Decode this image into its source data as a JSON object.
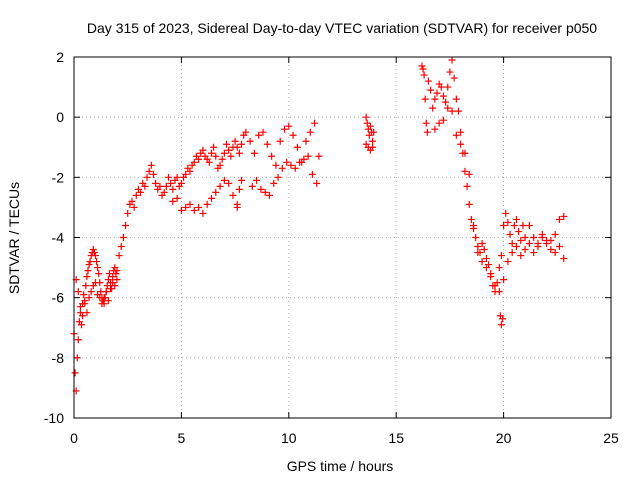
{
  "chart_data": {
    "type": "scatter",
    "title": "Day 315 of 2023, Sidereal Day-to-day VTEC variation (SDTVAR) for receiver p050",
    "xlabel": "GPS time / hours",
    "ylabel": "SDTVAR / TECUs",
    "xlim": [
      0,
      25
    ],
    "ylim": [
      -10,
      2
    ],
    "xticks": [
      0,
      5,
      10,
      15,
      20,
      25
    ],
    "yticks": [
      -10,
      -8,
      -6,
      -4,
      -2,
      0,
      2
    ],
    "xtick_labels": [
      "0",
      "5",
      "10",
      "15",
      "20",
      "25"
    ],
    "ytick_labels": [
      "-10",
      "-8",
      "-6",
      "-4",
      "-2",
      "0",
      "2"
    ],
    "grid": true,
    "marker": "plus",
    "color": "#ff0000",
    "series": [
      {
        "name": "p050",
        "x": [
          0.0,
          0.05,
          0.1,
          0.15,
          0.2,
          0.25,
          0.3,
          0.35,
          0.4,
          0.45,
          0.5,
          0.55,
          0.6,
          0.65,
          0.7,
          0.75,
          0.8,
          0.85,
          0.9,
          0.95,
          1.0,
          1.05,
          1.1,
          1.15,
          1.2,
          1.25,
          1.3,
          1.35,
          1.4,
          1.45,
          1.5,
          1.55,
          1.6,
          1.65,
          1.7,
          1.75,
          1.8,
          1.85,
          1.9,
          1.95,
          2.0,
          2.1,
          2.2,
          2.3,
          2.4,
          2.5,
          2.6,
          2.7,
          2.8,
          2.9,
          3.0,
          3.1,
          3.2,
          3.3,
          3.4,
          3.5,
          3.6,
          3.7,
          3.8,
          3.9,
          4.0,
          4.1,
          4.2,
          4.3,
          4.4,
          4.5,
          4.6,
          4.7,
          4.8,
          4.9,
          5.0,
          5.1,
          5.2,
          5.3,
          5.4,
          5.5,
          5.6,
          5.7,
          5.8,
          5.9,
          6.0,
          6.1,
          6.2,
          6.3,
          6.4,
          6.5,
          6.6,
          6.7,
          6.8,
          6.9,
          7.0,
          7.1,
          7.2,
          7.3,
          7.4,
          7.5,
          7.6,
          7.7,
          7.8,
          7.9,
          8.0,
          8.2,
          8.4,
          8.6,
          8.8,
          9.0,
          9.2,
          9.4,
          9.6,
          9.8,
          10.0,
          10.2,
          10.4,
          10.6,
          10.8,
          11.0,
          11.2,
          11.4,
          0.1,
          0.2,
          0.3,
          0.4,
          0.5,
          0.6,
          0.7,
          0.8,
          0.9,
          1.0,
          1.1,
          1.2,
          1.3,
          1.4,
          1.5,
          1.6,
          1.7,
          1.8,
          1.9,
          2.0,
          4.6,
          4.8,
          5.0,
          5.2,
          5.4,
          5.6,
          5.8,
          6.0,
          6.2,
          6.4,
          6.6,
          6.8,
          7.0,
          7.2,
          7.4,
          7.6,
          7.6,
          7.7,
          7.8,
          8.3,
          8.5,
          8.7,
          8.9,
          9.1,
          9.3,
          9.5,
          9.7,
          9.9,
          10.1,
          10.3,
          10.5,
          10.7,
          10.9,
          11.1,
          11.3,
          13.6,
          13.65,
          13.7,
          13.75,
          13.8,
          13.85,
          13.9,
          13.95,
          13.6,
          13.7,
          13.8,
          13.9,
          16.2,
          16.25,
          16.3,
          16.35,
          16.4,
          16.45,
          16.5,
          16.6,
          16.7,
          16.8,
          16.9,
          17.0,
          17.1,
          17.2,
          17.3,
          17.4,
          17.5,
          17.6,
          17.7,
          17.8,
          17.9,
          18.0,
          18.1,
          18.2,
          18.3,
          18.4,
          18.5,
          18.6,
          18.7,
          18.8,
          18.9,
          19.0,
          19.1,
          19.2,
          19.3,
          19.4,
          19.5,
          19.6,
          19.7,
          19.8,
          19.9,
          20.0,
          20.1,
          20.2,
          20.3,
          20.4,
          20.5,
          20.6,
          20.7,
          20.8,
          20.9,
          21.0,
          21.2,
          21.4,
          21.6,
          21.8,
          22.0,
          22.2,
          22.4,
          22.6,
          22.8,
          16.8,
          17.0,
          17.2,
          17.4,
          17.6,
          17.8,
          18.0,
          18.2,
          18.4,
          18.6,
          18.8,
          19.0,
          19.2,
          19.4,
          19.6,
          19.8,
          20.0,
          20.2,
          20.4,
          20.6,
          20.8,
          21.0,
          21.2,
          21.4,
          21.6,
          21.8,
          22.0,
          22.2,
          22.4,
          22.6,
          22.8,
          19.85,
          19.9,
          19.95
        ],
        "y": [
          -7.2,
          -8.5,
          -9.1,
          -8.0,
          -7.4,
          -6.8,
          -6.5,
          -6.9,
          -6.2,
          -5.9,
          -6.1,
          -5.6,
          -5.3,
          -5.1,
          -4.9,
          -4.8,
          -4.6,
          -4.5,
          -4.4,
          -4.5,
          -4.6,
          -4.8,
          -5.0,
          -5.2,
          -5.5,
          -5.8,
          -6.0,
          -6.1,
          -6.2,
          -6.0,
          -5.8,
          -5.6,
          -5.4,
          -5.2,
          -5.5,
          -5.7,
          -5.3,
          -5.1,
          -5.0,
          -5.2,
          -5.1,
          -4.6,
          -4.3,
          -4.0,
          -3.6,
          -3.2,
          -2.9,
          -2.8,
          -3.0,
          -2.6,
          -2.4,
          -2.5,
          -2.2,
          -2.3,
          -2.0,
          -1.8,
          -1.6,
          -1.9,
          -2.2,
          -2.4,
          -2.3,
          -2.6,
          -2.5,
          -2.3,
          -2.0,
          -2.2,
          -2.4,
          -2.1,
          -2.0,
          -2.3,
          -2.2,
          -2.0,
          -1.9,
          -1.7,
          -1.8,
          -1.6,
          -1.5,
          -1.3,
          -1.4,
          -1.2,
          -1.1,
          -1.3,
          -1.4,
          -1.5,
          -1.2,
          -1.0,
          -1.3,
          -1.7,
          -1.6,
          -1.4,
          -1.2,
          -0.9,
          -1.1,
          -1.3,
          -1.0,
          -0.8,
          -1.0,
          -1.2,
          -0.9,
          -0.6,
          -0.5,
          -0.8,
          -1.2,
          -0.6,
          -0.5,
          -0.9,
          -1.3,
          -1.6,
          -0.8,
          -0.4,
          -0.3,
          -0.6,
          -1.0,
          -1.5,
          -0.8,
          -0.5,
          -0.2,
          -1.3,
          -5.4,
          -5.8,
          -6.3,
          -6.6,
          -6.2,
          -6.5,
          -6.0,
          -5.8,
          -5.6,
          -5.5,
          -5.9,
          -6.0,
          -6.2,
          -6.0,
          -5.8,
          -6.1,
          -5.7,
          -5.5,
          -5.6,
          -5.4,
          -2.8,
          -2.7,
          -3.1,
          -3.0,
          -2.9,
          -3.1,
          -3.0,
          -3.2,
          -2.9,
          -2.7,
          -2.5,
          -2.3,
          -2.1,
          -2.2,
          -2.6,
          -2.9,
          -3.0,
          -2.4,
          -2.1,
          -2.3,
          -2.1,
          -2.4,
          -2.5,
          -2.6,
          -2.2,
          -2.0,
          -1.7,
          -1.5,
          -1.6,
          -1.7,
          -1.5,
          -1.4,
          -1.3,
          -1.9,
          -2.2,
          0.0,
          -0.2,
          -0.4,
          -0.6,
          -0.3,
          -0.5,
          -0.8,
          -0.5,
          -0.9,
          -1.0,
          -1.1,
          -1.0,
          1.7,
          1.6,
          1.4,
          0.6,
          -0.2,
          -0.5,
          1.2,
          0.9,
          0.3,
          0.6,
          0.8,
          1.1,
          1.0,
          0.7,
          0.5,
          1.0,
          1.5,
          1.9,
          1.3,
          0.6,
          0.2,
          -0.5,
          -1.2,
          -1.8,
          -2.3,
          -2.9,
          -3.4,
          -3.7,
          -4.0,
          -4.3,
          -4.5,
          -4.2,
          -4.4,
          -4.7,
          -4.9,
          -5.3,
          -5.6,
          -5.8,
          -5.5,
          -5.0,
          -4.6,
          -3.6,
          -3.2,
          -3.5,
          -3.9,
          -4.2,
          -3.6,
          -3.4,
          -3.8,
          -4.1,
          -3.6,
          -4.0,
          -3.6,
          -4.0,
          -4.2,
          -3.9,
          -4.1,
          -4.4,
          -3.9,
          -3.4,
          -3.3,
          -0.4,
          -0.2,
          -0.1,
          0.3,
          0.2,
          -0.6,
          -0.9,
          -1.2,
          -1.9,
          -3.6,
          -4.5,
          -4.8,
          -5.0,
          -5.2,
          -5.6,
          -5.8,
          -5.4,
          -4.8,
          -4.5,
          -4.3,
          -4.6,
          -4.4,
          -4.2,
          -4.5,
          -4.3,
          -4.0,
          -4.2,
          -4.1,
          -4.5,
          -4.3,
          -4.7,
          -6.6,
          -6.9,
          -6.7
        ]
      }
    ]
  }
}
